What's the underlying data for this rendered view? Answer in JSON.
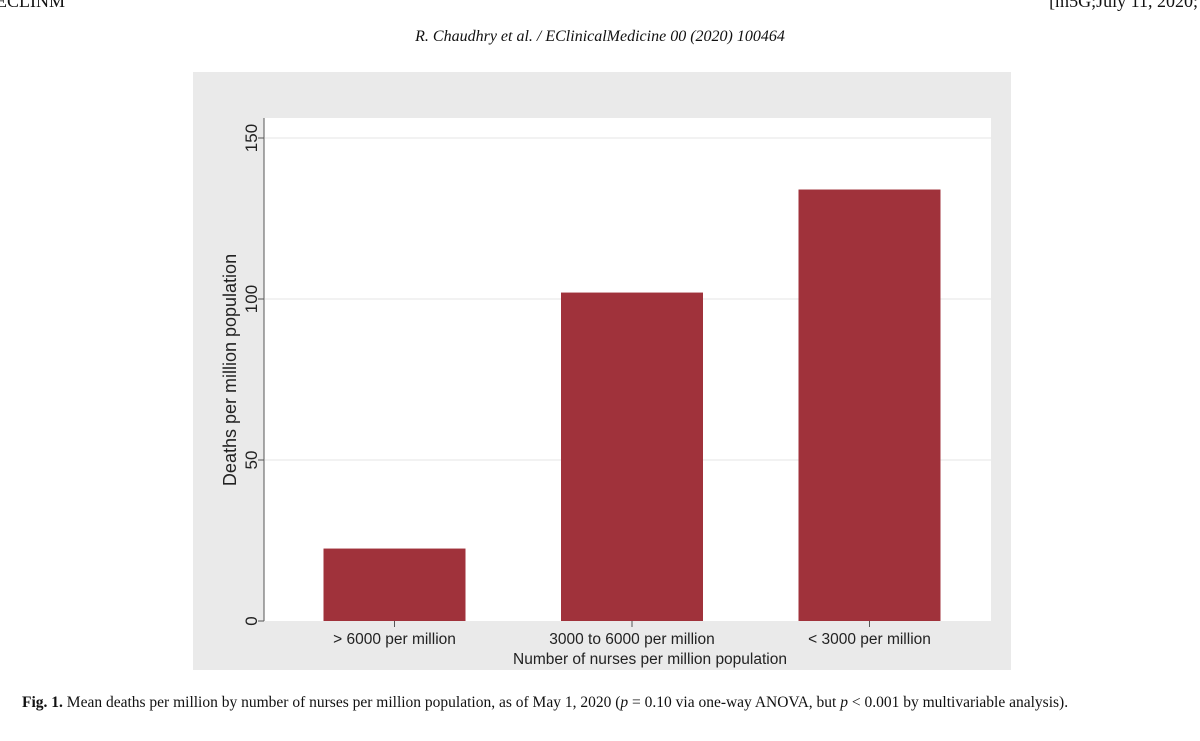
{
  "header": {
    "journal_abbrev": "ECLINM",
    "version_stamp": "[m5G;July 11, 2020;",
    "running_head": "R. Chaudhry et al. / EClinicalMedicine 00 (2020) 100464"
  },
  "chart_data": {
    "type": "bar",
    "categories": [
      "> 6000 per million",
      "3000 to 6000 per million",
      "< 3000 per million"
    ],
    "values": [
      22.5,
      102,
      134
    ],
    "title": "",
    "xlabel": "Number of nurses per million population",
    "ylabel": "Deaths per million population",
    "ylim": [
      0,
      150
    ],
    "yticks": [
      0,
      50,
      100,
      150
    ],
    "grid": true,
    "bar_color": "#a0323b",
    "plot_bg": "#ffffff",
    "outer_bg": "#eaeaea"
  },
  "caption": {
    "label": "Fig. 1.",
    "text_1": " Mean deaths per million by number of nurses per million population, as of May 1, 2020 (",
    "p_symbol_1": "p",
    "text_2": " = 0.10 via one-way ANOVA, but ",
    "p_symbol_2": "p",
    "text_3": " < 0.001 by multivariable analysis)."
  }
}
